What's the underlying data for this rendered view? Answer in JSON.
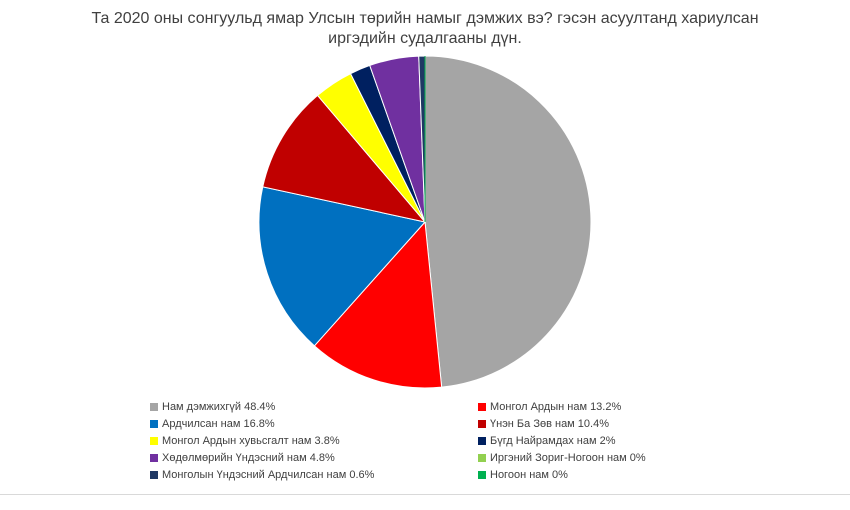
{
  "chart_data": {
    "type": "pie",
    "title": "Та 2020 оны сонгуульд ямар Улсын төрийн намыг дэмжих вэ? гэсэн асуултанд хариулсан иргэдийн судалгааны дүн.",
    "legend_position": "bottom",
    "slices": [
      {
        "label": "Нам дэмжихгүй 48.4%",
        "value": 48.4,
        "color": "#a5a5a5"
      },
      {
        "label": "Монгол Ардын нам 13.2%",
        "value": 13.2,
        "color": "#ff0000"
      },
      {
        "label": "Ардчилсан нам 16.8%",
        "value": 16.8,
        "color": "#0070c0"
      },
      {
        "label": "Үнэн Ба Зөв нам 10.4%",
        "value": 10.4,
        "color": "#c00000"
      },
      {
        "label": "Монгол Ардын хувьсгалт нам 3.8%",
        "value": 3.8,
        "color": "#ffff00"
      },
      {
        "label": "Бүгд Найрамдах нам 2%",
        "value": 2,
        "color": "#002060"
      },
      {
        "label": "Хөдөлмөрийн Үндэсний нам 4.8%",
        "value": 4.8,
        "color": "#7030a0"
      },
      {
        "label": "Иргэний Зориг-Ногоон нам 0%",
        "value": 0,
        "color": "#92d050"
      },
      {
        "label": "Монголын Үндэсний Ардчилсан нам 0.6%",
        "value": 0.6,
        "color": "#1f3864"
      },
      {
        "label": "Ногоон нам 0%",
        "value": 0,
        "color": "#00b050"
      }
    ]
  }
}
